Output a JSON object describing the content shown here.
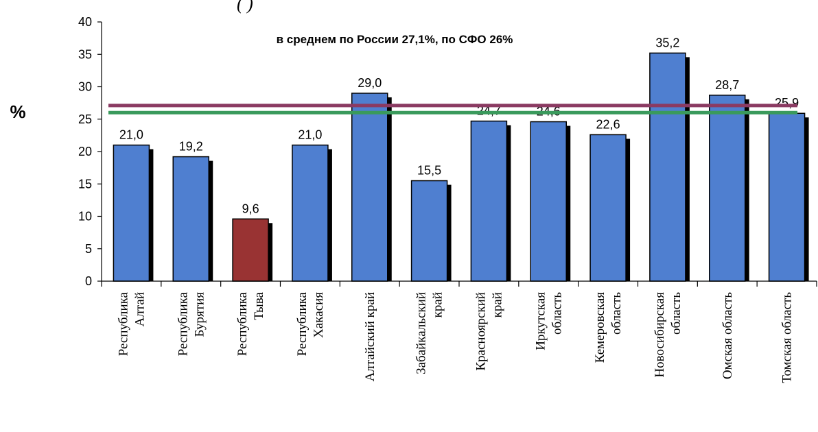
{
  "header_fragment": "(                                    )                                  ",
  "chart_data": {
    "type": "bar",
    "annotation": "в среднем по России 27,1%,  по СФО 26%",
    "ylabel": "%",
    "ylim": [
      0,
      40
    ],
    "yticks": [
      0,
      5,
      10,
      15,
      20,
      25,
      30,
      35,
      40
    ],
    "categories": [
      [
        "Республика",
        "Алтай"
      ],
      [
        "Республика",
        "Бурятия"
      ],
      [
        "Республика",
        "Тыва"
      ],
      [
        "Республика",
        "Хакасия"
      ],
      [
        "Алтайский край"
      ],
      [
        "Забайкальский",
        "край"
      ],
      [
        "Красноярский",
        "край"
      ],
      [
        "Иркутская",
        "область"
      ],
      [
        "Кемеровская",
        "область"
      ],
      [
        "Новосибирская",
        "область"
      ],
      [
        "Омская область"
      ],
      [
        "Томская область"
      ]
    ],
    "values": [
      21.0,
      19.2,
      9.6,
      21.0,
      29.0,
      15.5,
      24.7,
      24.6,
      22.6,
      35.2,
      28.7,
      25.9
    ],
    "value_labels": [
      "21,0",
      "19,2",
      "9,6",
      "21,0",
      "29,0",
      "15,5",
      "24,7",
      "24,6",
      "22,6",
      "35,2",
      "28,7",
      "25,9"
    ],
    "highlight_index": 2,
    "colors": {
      "bar": "#4f7fd0",
      "bar_highlight": "#993333",
      "bar_shadow": "#000000",
      "russia_line": "#8b3a62",
      "sfo_line": "#3a9a5c"
    },
    "reference_lines": [
      {
        "name": "Россия",
        "value": 27.1,
        "color": "#8b3a62"
      },
      {
        "name": "СФО",
        "value": 26.0,
        "color": "#3a9a5c"
      }
    ],
    "grid": false,
    "legend": "none"
  }
}
